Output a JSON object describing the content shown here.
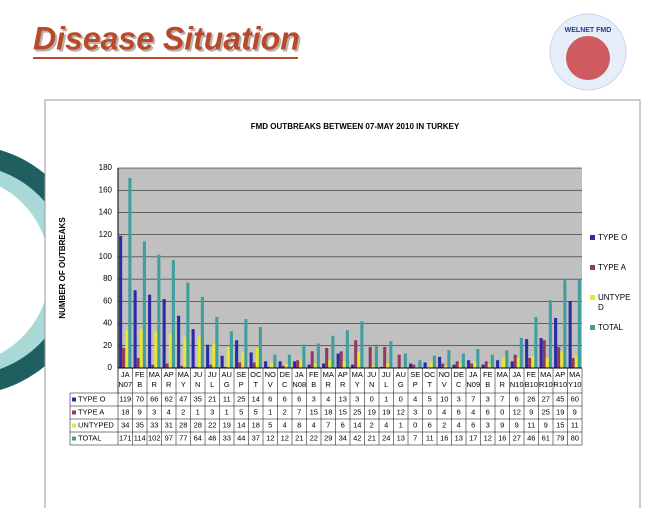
{
  "header": {
    "title": "Disease Situation",
    "logo": "WELNET FMD"
  },
  "chart_data": {
    "type": "bar",
    "title": "FMD OUTBREAKS  BETWEEN 07-MAY 2010 IN TURKEY",
    "y_label": "NUMBER OF OUTBREAKS",
    "categories": [
      "JAN07",
      "FEB",
      "MAR",
      "APR",
      "MAY",
      "JUN",
      "JUL",
      "AUG",
      "SEP",
      "OCT",
      "NOV",
      "DEC",
      "JAN08",
      "FEB",
      "MAR",
      "APR",
      "MAY",
      "JUN",
      "JUL",
      "AUG",
      "SEP",
      "OCT",
      "NOV",
      "DEC",
      "JAN09",
      "FEB",
      "MAR",
      "JAN10",
      "FEB10",
      "MAR10",
      "APR10",
      "MAY10"
    ],
    "series": [
      {
        "name": "TYPE O",
        "color": "#2b2ba6",
        "values": [
          119,
          70,
          66,
          62,
          47,
          35,
          21,
          11,
          25,
          14,
          6,
          6,
          6,
          3,
          4,
          13,
          3,
          0,
          1,
          0,
          4,
          5,
          10,
          3,
          7,
          3,
          7,
          6,
          26,
          27,
          45,
          60
        ]
      },
      {
        "name": "TYPE A",
        "color": "#8e3b5e",
        "values": [
          18,
          9,
          3,
          4,
          2,
          1,
          3,
          1,
          5,
          5,
          1,
          2,
          7,
          15,
          18,
          15,
          25,
          19,
          19,
          12,
          3,
          0,
          4,
          6,
          4,
          6,
          0,
          12,
          9,
          25,
          19,
          9
        ]
      },
      {
        "name": "UNTYPED",
        "color": "#e6e633",
        "values": [
          34,
          35,
          33,
          31,
          28,
          28,
          22,
          19,
          14,
          18,
          5,
          4,
          8,
          4,
          7,
          6,
          14,
          2,
          4,
          1,
          0,
          6,
          2,
          4,
          6,
          3,
          9,
          9,
          11,
          9,
          15,
          11
        ]
      },
      {
        "name": "TOTAL",
        "color": "#3f9e9e",
        "values": [
          171,
          114,
          102,
          97,
          77,
          64,
          46,
          33,
          44,
          37,
          12,
          12,
          21,
          22,
          29,
          34,
          42,
          21,
          24,
          13,
          7,
          11,
          16,
          13,
          17,
          12,
          16,
          27,
          46,
          61,
          79,
          80
        ]
      }
    ],
    "ylim": [
      0,
      180
    ],
    "yticks": [
      0,
      20,
      40,
      60,
      80,
      100,
      120,
      140,
      160,
      180
    ],
    "grid": true,
    "legend": "right"
  }
}
